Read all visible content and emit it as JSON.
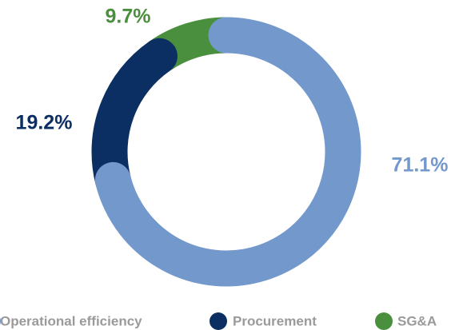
{
  "chart_data": {
    "type": "donut",
    "categories": [
      "Operational efficiency",
      "Procurement",
      "SG&A"
    ],
    "values": [
      71.1,
      19.2,
      9.7
    ],
    "value_labels": [
      "71.1%",
      "19.2%",
      "9.7%"
    ],
    "colors": [
      "#7398cc",
      "#0b2f63",
      "#4a8f3e"
    ],
    "legend": "bottom"
  }
}
